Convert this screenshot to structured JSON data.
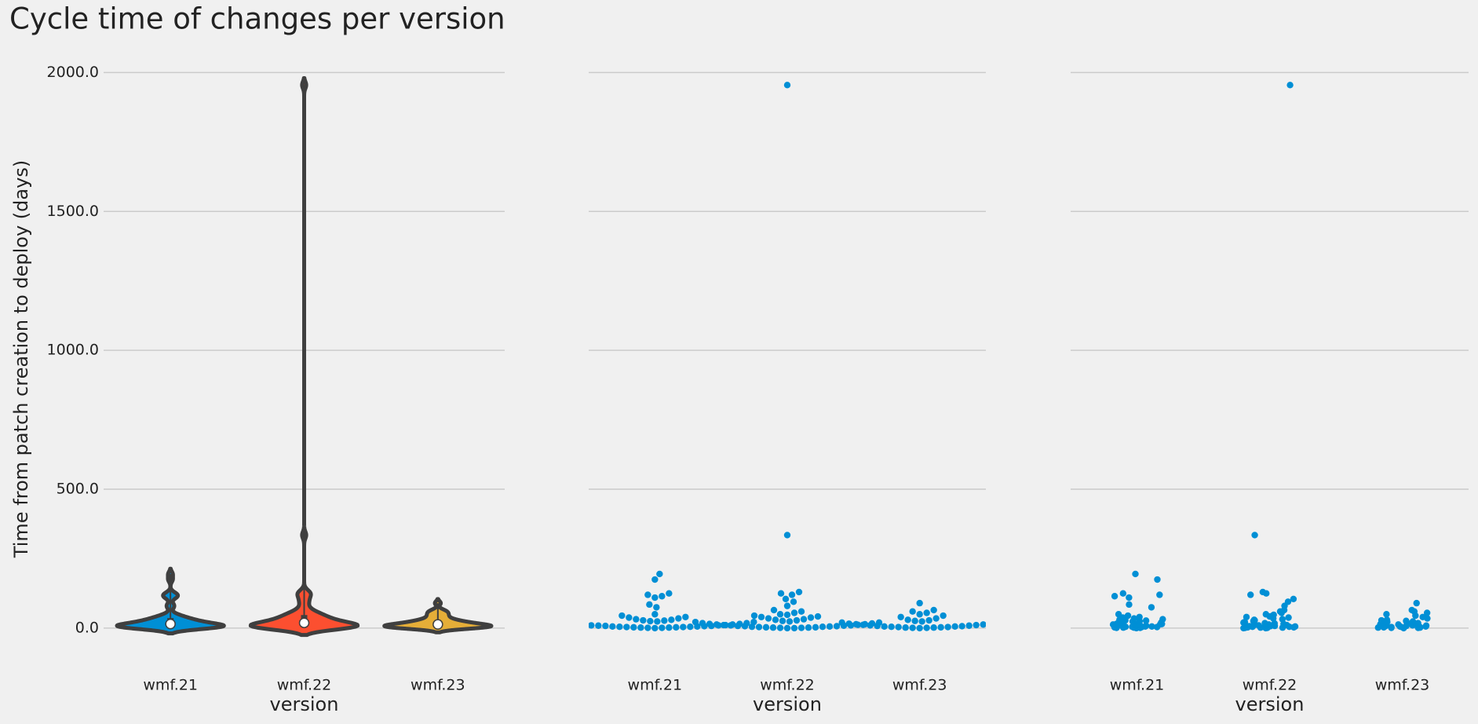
{
  "chart_data": [
    {
      "type": "violin",
      "title": "Cycle time of changes per version",
      "ylabel": "Time from patch creation to deploy (days)",
      "xlabel": "version",
      "categories": [
        "wmf.21",
        "wmf.22",
        "wmf.23"
      ],
      "colors": [
        "#008fd5",
        "#fc4f30",
        "#e5ae38"
      ],
      "values": [
        [
          0,
          1,
          1,
          2,
          2,
          3,
          3,
          4,
          4,
          5,
          5,
          6,
          6,
          7,
          8,
          8,
          9,
          10,
          10,
          11,
          12,
          13,
          14,
          15,
          16,
          18,
          20,
          22,
          24,
          25,
          27,
          28,
          30,
          32,
          35,
          38,
          40,
          45,
          50,
          75,
          85,
          110,
          115,
          120,
          125,
          175,
          195
        ],
        [
          0,
          0,
          1,
          1,
          2,
          2,
          3,
          3,
          4,
          5,
          5,
          6,
          7,
          7,
          8,
          9,
          10,
          10,
          11,
          12,
          13,
          14,
          15,
          17,
          18,
          20,
          22,
          24,
          26,
          28,
          30,
          32,
          35,
          38,
          40,
          42,
          45,
          48,
          50,
          55,
          60,
          65,
          80,
          95,
          105,
          120,
          125,
          130,
          335,
          1955
        ],
        [
          0,
          1,
          1,
          2,
          2,
          3,
          4,
          4,
          5,
          6,
          6,
          7,
          8,
          9,
          10,
          11,
          12,
          13,
          14,
          15,
          16,
          18,
          20,
          22,
          24,
          26,
          28,
          30,
          35,
          40,
          45,
          50,
          55,
          60,
          65,
          90
        ]
      ],
      "ylim": [
        -150,
        2100
      ],
      "yticks": [
        {
          "value": 0,
          "label": "0.0"
        },
        {
          "value": 500,
          "label": "500.0"
        },
        {
          "value": 1000,
          "label": "1000.0"
        },
        {
          "value": 1500,
          "label": "1500.0"
        },
        {
          "value": 2000,
          "label": "2000.0"
        }
      ],
      "grid": true
    },
    {
      "type": "swarm",
      "xlabel": "version",
      "categories": [
        "wmf.21",
        "wmf.22",
        "wmf.23"
      ],
      "color": "#008fd5",
      "values": [
        [
          0,
          1,
          1,
          2,
          2,
          3,
          3,
          4,
          4,
          5,
          5,
          6,
          6,
          7,
          8,
          8,
          9,
          10,
          10,
          11,
          12,
          13,
          14,
          15,
          16,
          18,
          20,
          22,
          24,
          25,
          27,
          28,
          30,
          32,
          35,
          38,
          40,
          45,
          50,
          75,
          85,
          110,
          115,
          120,
          125,
          175,
          195
        ],
        [
          0,
          0,
          1,
          1,
          2,
          2,
          3,
          3,
          4,
          5,
          5,
          6,
          7,
          7,
          8,
          9,
          10,
          10,
          11,
          12,
          13,
          14,
          15,
          17,
          18,
          20,
          22,
          24,
          26,
          28,
          30,
          32,
          35,
          38,
          40,
          42,
          45,
          48,
          50,
          55,
          60,
          65,
          80,
          95,
          105,
          120,
          125,
          130,
          335,
          1955
        ],
        [
          0,
          1,
          1,
          2,
          2,
          3,
          4,
          4,
          5,
          6,
          6,
          7,
          8,
          9,
          10,
          11,
          12,
          13,
          14,
          15,
          16,
          18,
          20,
          22,
          24,
          26,
          28,
          30,
          35,
          40,
          45,
          50,
          55,
          60,
          65,
          90
        ]
      ],
      "ylim": [
        -150,
        2100
      ],
      "yticks": [
        0,
        500,
        1000,
        1500,
        2000
      ],
      "sharey": true,
      "grid": true
    },
    {
      "type": "strip",
      "xlabel": "version",
      "categories": [
        "wmf.21",
        "wmf.22",
        "wmf.23"
      ],
      "color": "#008fd5",
      "values": [
        [
          0,
          1,
          1,
          2,
          2,
          3,
          3,
          4,
          4,
          5,
          5,
          6,
          6,
          7,
          8,
          8,
          9,
          10,
          10,
          11,
          12,
          13,
          14,
          15,
          16,
          18,
          20,
          22,
          24,
          25,
          27,
          28,
          30,
          32,
          35,
          38,
          40,
          45,
          50,
          75,
          85,
          110,
          115,
          120,
          125,
          175,
          195
        ],
        [
          0,
          0,
          1,
          1,
          2,
          2,
          3,
          3,
          4,
          5,
          5,
          6,
          7,
          7,
          8,
          9,
          10,
          10,
          11,
          12,
          13,
          14,
          15,
          17,
          18,
          20,
          22,
          24,
          26,
          28,
          30,
          32,
          35,
          38,
          40,
          42,
          45,
          48,
          50,
          55,
          60,
          65,
          80,
          95,
          105,
          120,
          125,
          130,
          335,
          1955
        ],
        [
          0,
          1,
          1,
          2,
          2,
          3,
          4,
          4,
          5,
          6,
          6,
          7,
          8,
          9,
          10,
          11,
          12,
          13,
          14,
          15,
          16,
          18,
          20,
          22,
          24,
          26,
          28,
          30,
          35,
          40,
          45,
          50,
          55,
          60,
          65,
          90
        ]
      ],
      "ylim": [
        -150,
        2100
      ],
      "yticks": [
        0,
        500,
        1000,
        1500,
        2000
      ],
      "sharey": true,
      "grid": true
    }
  ]
}
